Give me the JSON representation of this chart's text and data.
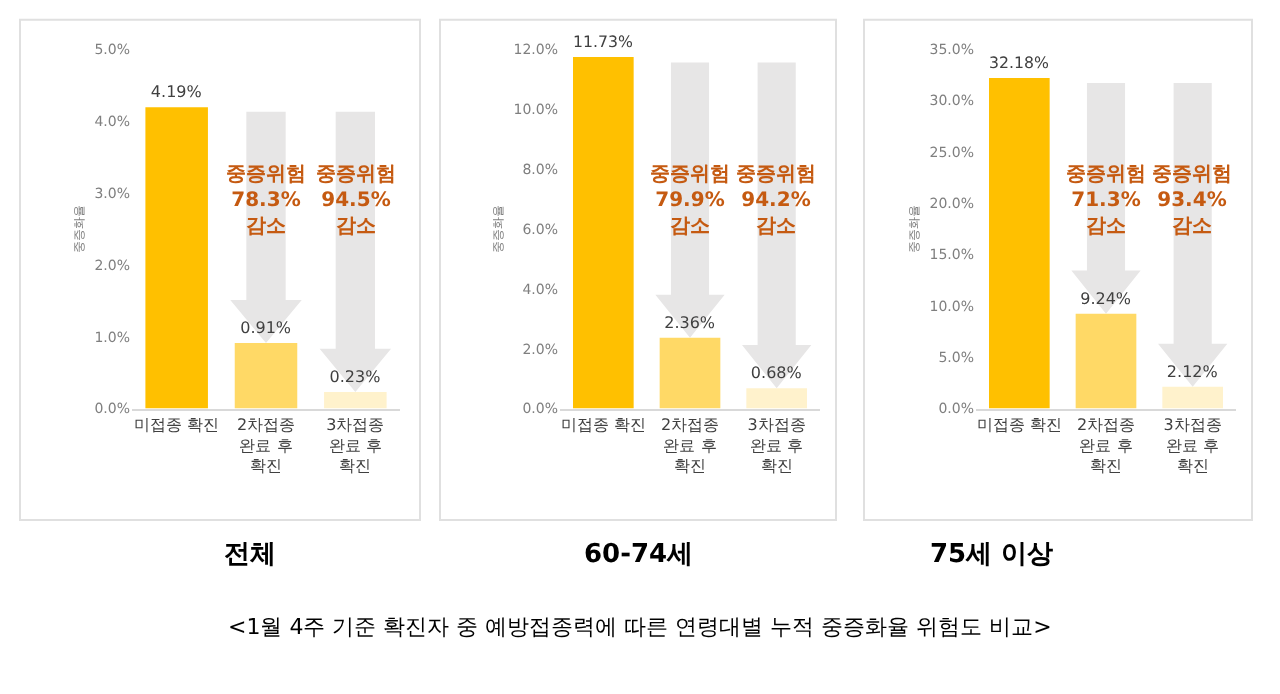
{
  "chart_data": [
    {
      "type": "bar",
      "title": "전체",
      "ylabel": "중증화율",
      "categories": [
        "미접종 확진",
        "2차접종\n완료 후\n확진",
        "3차접종\n완료 후\n확진"
      ],
      "values": [
        4.19,
        0.91,
        0.23
      ],
      "colors": [
        "#ffc000",
        "#ffd966",
        "#fff2cc"
      ],
      "value_labels": [
        "4.19%",
        "0.91%",
        "0.23%"
      ],
      "ylim": [
        0,
        5
      ],
      "yticks": [
        {
          "value": 0,
          "label": "0.0%"
        },
        {
          "value": 1,
          "label": "1.0%"
        },
        {
          "value": 2,
          "label": "2.0%"
        },
        {
          "value": 3,
          "label": "3.0%"
        },
        {
          "value": 4,
          "label": "4.0%"
        },
        {
          "value": 5,
          "label": "5.0%"
        }
      ],
      "annotations": [
        "중증위험\n78.3%\n감소",
        "중증위험\n94.5%\n감소",
        "<1월 4주 기준 확진자 중 예방접종력에 따른 연령대별 누적 중증화율 위험도 비교>"
      ]
    },
    {
      "type": "bar",
      "title": "60-74세",
      "ylabel": "중증화율",
      "categories": [
        "미접종 확진",
        "2차접종\n완료 후\n확진",
        "3차접종\n완료 후\n확진"
      ],
      "values": [
        11.73,
        2.36,
        0.68
      ],
      "colors": [
        "#ffc000",
        "#ffd966",
        "#fff2cc"
      ],
      "value_labels": [
        "11.73%",
        "2.36%",
        "0.68%"
      ],
      "ylim": [
        0,
        12
      ],
      "yticks": [
        {
          "value": 0,
          "label": "0.0%"
        },
        {
          "value": 2,
          "label": "2.0%"
        },
        {
          "value": 4,
          "label": "4.0%"
        },
        {
          "value": 6,
          "label": "6.0%"
        },
        {
          "value": 8,
          "label": "8.0%"
        },
        {
          "value": 10,
          "label": "10.0%"
        },
        {
          "value": 12,
          "label": "12.0%"
        }
      ],
      "annotations": [
        "중증위험\n79.9%\n감소",
        "중증위험\n94.2%\n감소"
      ]
    },
    {
      "type": "bar",
      "title": "75세 이상",
      "ylabel": "중증화율",
      "categories": [
        "미접종 확진",
        "2차접종\n완료 후\n확진",
        "3차접종\n완료 후\n확진"
      ],
      "values": [
        32.18,
        9.24,
        2.12
      ],
      "colors": [
        "#ffc000",
        "#ffd966",
        "#fff2cc"
      ],
      "value_labels": [
        "32.18%",
        "9.24%",
        "2.12%"
      ],
      "ylim": [
        0,
        35
      ],
      "yticks": [
        {
          "value": 0,
          "label": "0.0%"
        },
        {
          "value": 5,
          "label": "5.0%"
        },
        {
          "value": 10,
          "label": "10.0%"
        },
        {
          "value": 15,
          "label": "15.0%"
        },
        {
          "value": 20,
          "label": "20.0%"
        },
        {
          "value": 25,
          "label": "25.0%"
        },
        {
          "value": 30,
          "label": "30.0%"
        },
        {
          "value": 35,
          "label": "35.0%"
        }
      ],
      "annotations": [
        "중증위험\n71.3%\n감소",
        "중증위험\n93.4%\n감소"
      ]
    }
  ]
}
